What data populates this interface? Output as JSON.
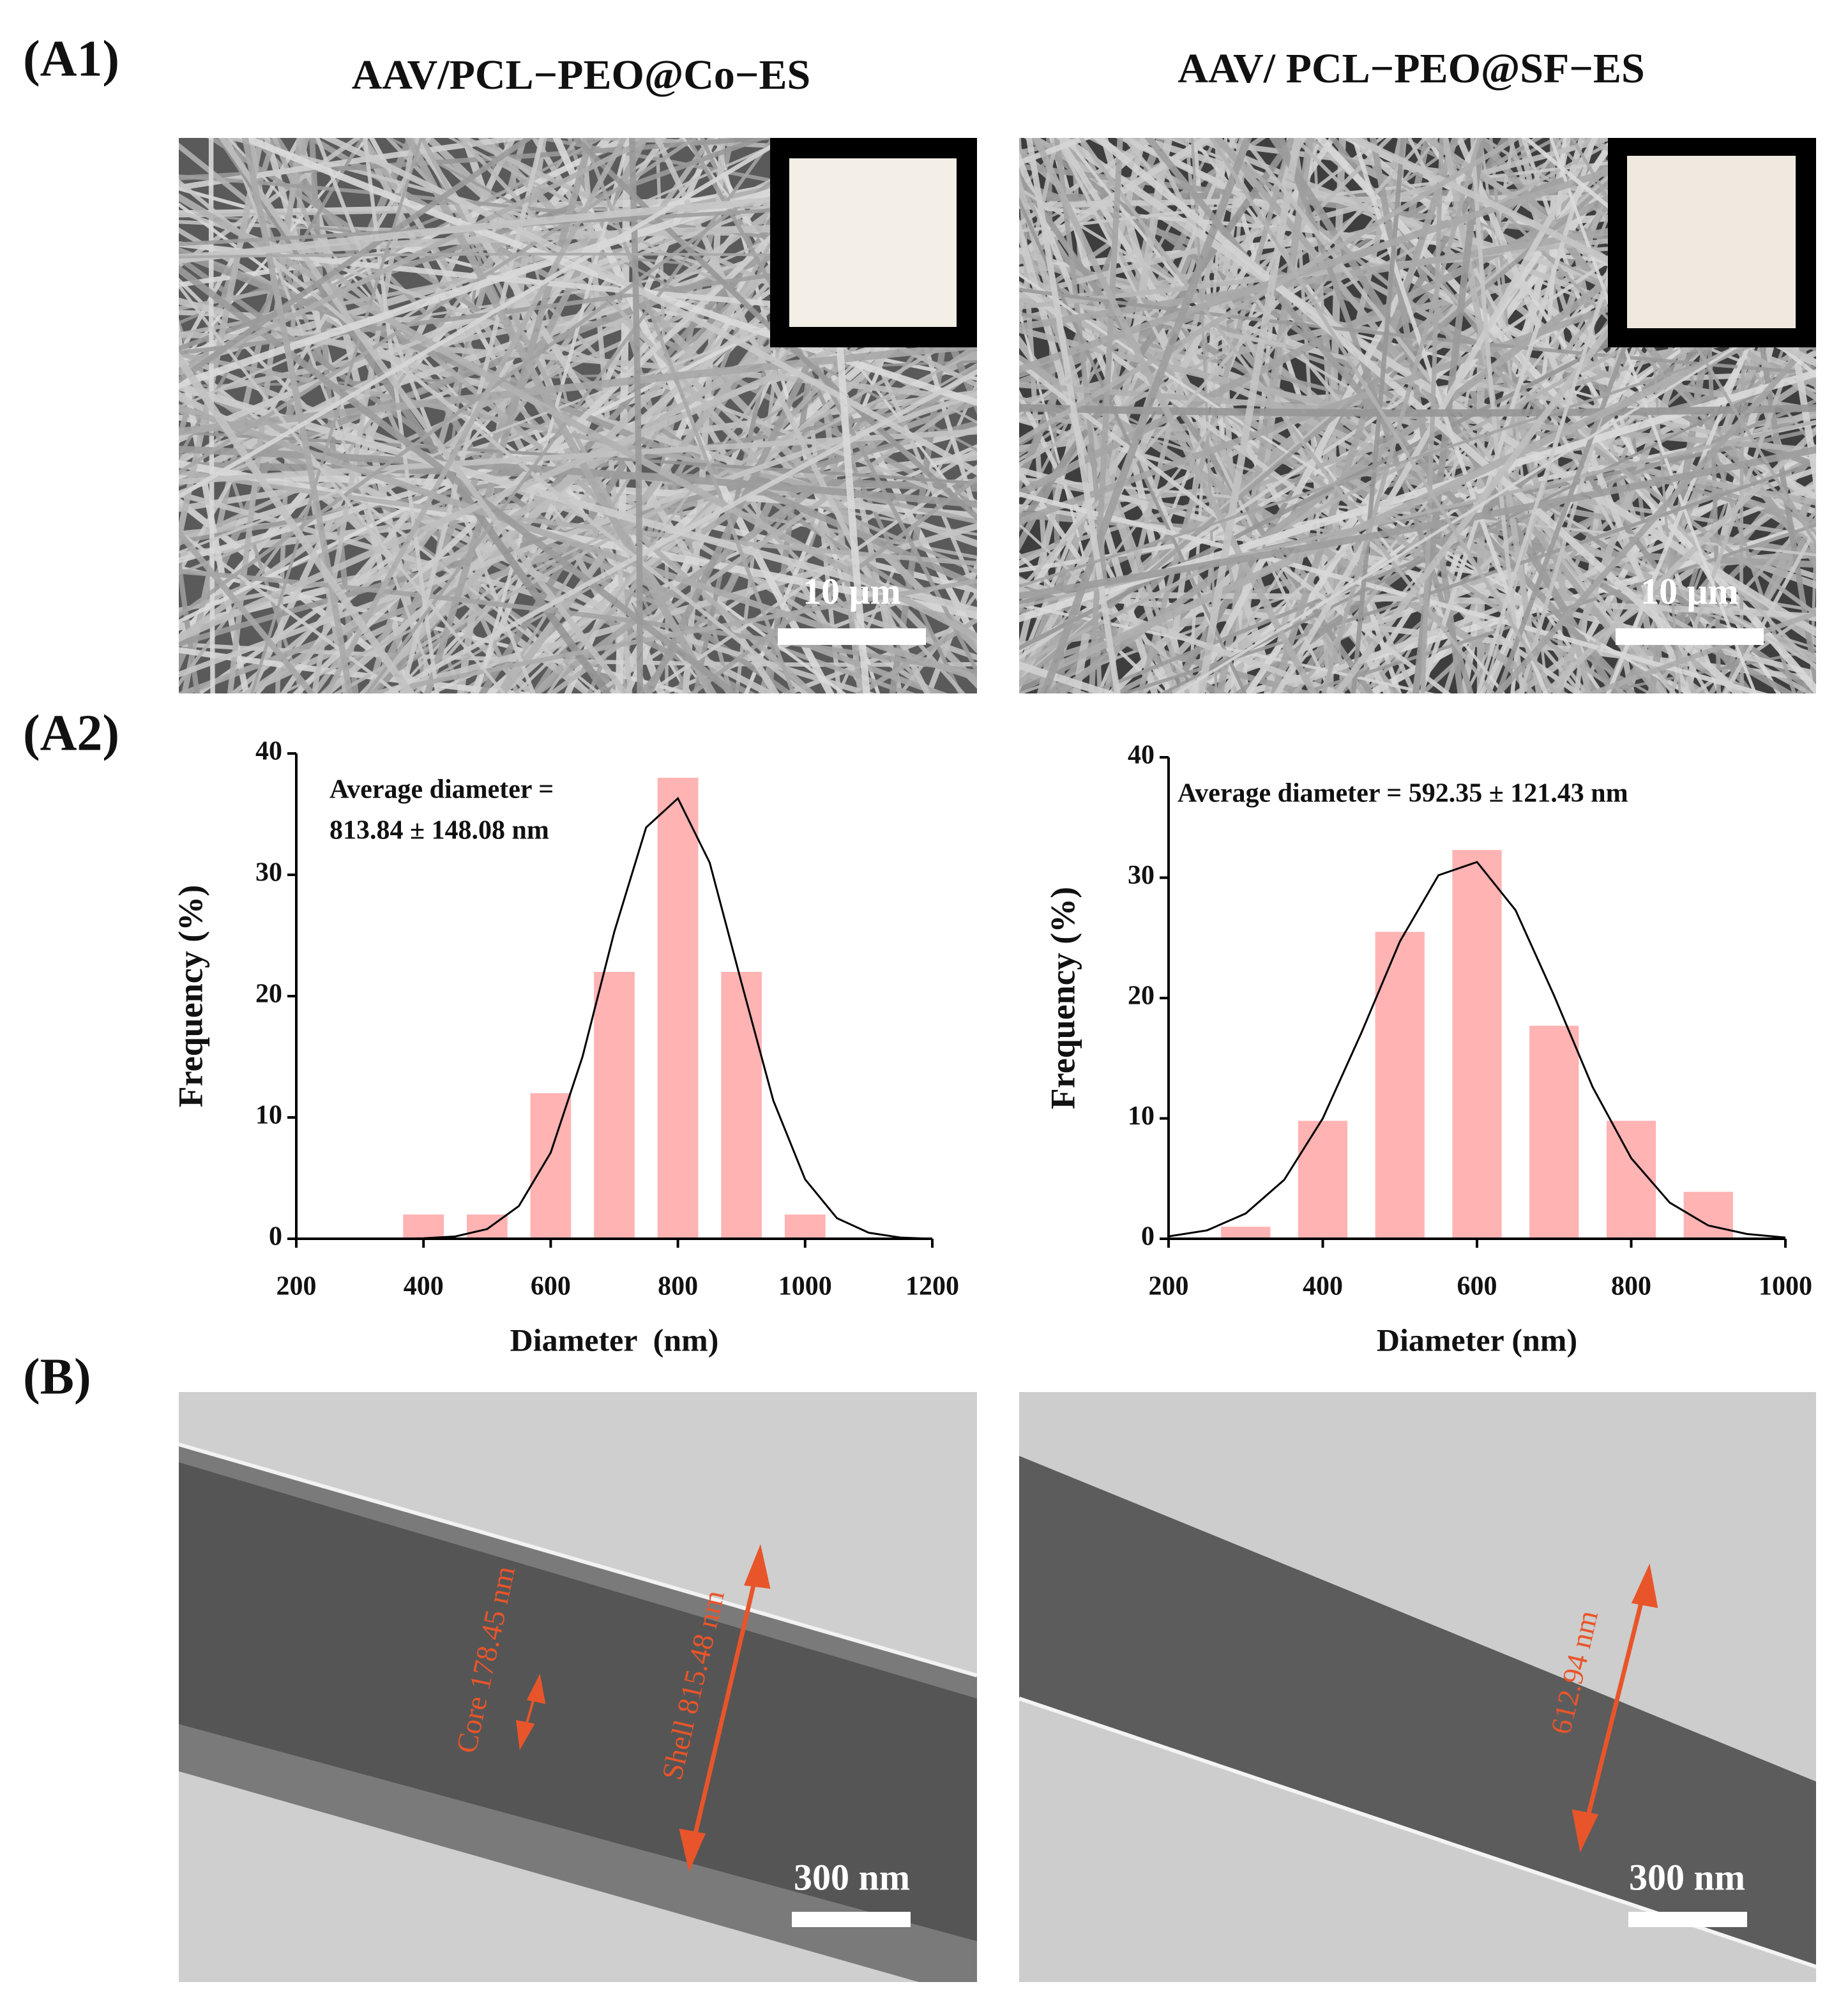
{
  "panels": {
    "a1": "(A1)",
    "a2": "(A2)",
    "b": "(B)"
  },
  "titles": [
    "AAV/PCL−PEO@Co−ES",
    "AAV/ PCL−PEO@SF−ES"
  ],
  "sem_scale_bars": [
    "10 μm",
    "10 μm"
  ],
  "tem": {
    "scale_bars": [
      "300 nm",
      "300 nm"
    ],
    "annotations": [
      "Core 178.45 nm",
      "Shell 815.48 nm",
      "612.94 nm"
    ]
  },
  "chart_data": [
    {
      "type": "bar",
      "xlabel": "Diameter  (nm)",
      "ylabel": "Frequency (%)",
      "annotation": [
        "Average diameter =",
        "813.84 ± 148.08 nm"
      ],
      "xlim": [
        200,
        1200
      ],
      "ylim": [
        0,
        40
      ],
      "xticks": [
        200,
        400,
        600,
        800,
        1000,
        1200
      ],
      "yticks": [
        0,
        10,
        20,
        30,
        40
      ],
      "series": [
        {
          "type": "bar",
          "color": "#ffb3b3",
          "x": [
            400,
            500,
            600,
            700,
            800,
            900,
            1000
          ],
          "values": [
            2,
            2,
            12,
            22,
            38,
            22,
            2
          ]
        },
        {
          "type": "line",
          "color": "#000000",
          "x": [
            200,
            250,
            300,
            350,
            400,
            450,
            500,
            550,
            600,
            650,
            700,
            750,
            800,
            850,
            900,
            950,
            1000,
            1050,
            1100,
            1150,
            1200
          ],
          "values": [
            0,
            0,
            0,
            0,
            0.04,
            0.19,
            0.8,
            2.7,
            7.1,
            15.0,
            25.3,
            33.9,
            36.3,
            31.0,
            21.1,
            11.4,
            4.9,
            1.7,
            0.5,
            0.1,
            0
          ]
        }
      ]
    },
    {
      "type": "bar",
      "xlabel": "Diameter (nm)",
      "ylabel": "Frequency (%)",
      "annotation": [
        "Average diameter = 592.35 ± 121.43 nm"
      ],
      "xlim": [
        200,
        1000
      ],
      "ylim": [
        0,
        40
      ],
      "xticks": [
        200,
        400,
        600,
        800,
        1000
      ],
      "yticks": [
        0,
        10,
        20,
        30,
        40
      ],
      "series": [
        {
          "type": "bar",
          "color": "#ffb3b3",
          "x": [
            300,
            400,
            500,
            600,
            700,
            800,
            900
          ],
          "values": [
            1,
            9.8,
            25.5,
            32.3,
            17.7,
            9.8,
            3.9
          ]
        },
        {
          "type": "line",
          "color": "#000000",
          "x": [
            200,
            250,
            300,
            350,
            400,
            450,
            500,
            550,
            600,
            650,
            700,
            750,
            800,
            850,
            900,
            950,
            1000
          ],
          "values": [
            0.2,
            0.7,
            2.1,
            4.9,
            10.0,
            17.1,
            24.7,
            30.2,
            31.3,
            27.3,
            20.2,
            12.6,
            6.7,
            3.0,
            1.1,
            0.4,
            0.1
          ]
        }
      ]
    }
  ]
}
